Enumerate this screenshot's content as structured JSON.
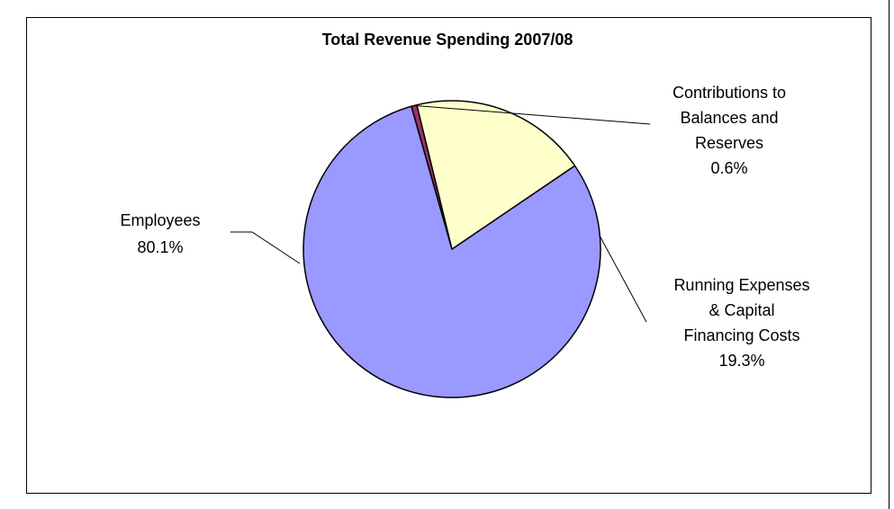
{
  "chart_data": {
    "type": "pie",
    "title": "Total Revenue Spending 2007/08",
    "slices": [
      {
        "name": "Employees",
        "value": 80.1,
        "label": "80.1%",
        "color": "#9999ff"
      },
      {
        "name": "Contributions to Balances and Reserves",
        "value": 0.6,
        "label": "0.6%",
        "color": "#993366"
      },
      {
        "name": "Running Expenses & Capital Financing Costs",
        "value": 19.3,
        "label": "19.3%",
        "color": "#ffffcc"
      }
    ],
    "label_lines": {
      "employees": [
        "Employees",
        "80.1%"
      ],
      "contributions": [
        "Contributions to",
        "Balances and",
        "Reserves",
        "0.6%"
      ],
      "running": [
        "Running Expenses",
        "& Capital",
        "Financing Costs",
        "19.3%"
      ]
    },
    "legend": "none",
    "start_angle_deg": -34.2,
    "direction": "clockwise",
    "outline_color": "#000000"
  }
}
